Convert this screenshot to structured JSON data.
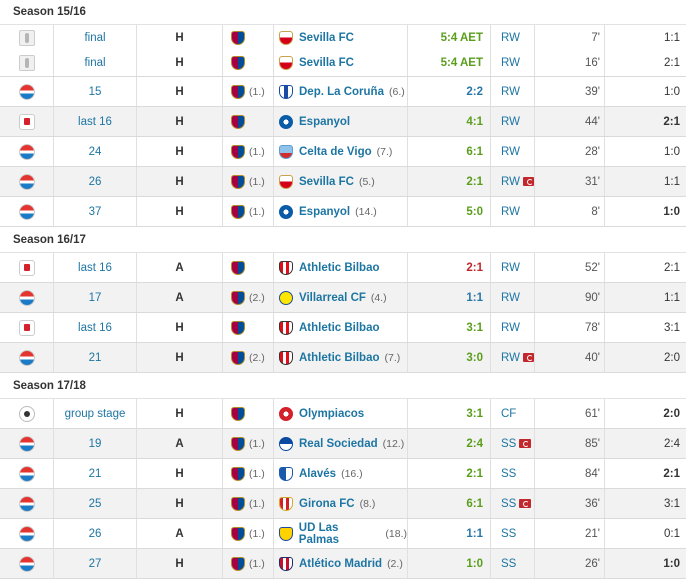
{
  "seasons": [
    {
      "label": "Season 15/16",
      "matches": [
        {
          "comp_icon": "supercopa-icon",
          "round": "final",
          "venue": "H",
          "team_rank": "",
          "opponent": "Sevilla FC",
          "opp_crest": "sevilla",
          "opp_rank": "",
          "result": "5:4 AET",
          "result_type": "win",
          "pos": "RW",
          "card": false,
          "minute": "7'",
          "score": "1:1",
          "score_bold": false
        },
        {
          "comp_icon": "supercopa-icon",
          "round": "final",
          "venue": "H",
          "team_rank": "",
          "opponent": "Sevilla FC",
          "opp_crest": "sevilla",
          "opp_rank": "",
          "result": "5:4 AET",
          "result_type": "win",
          "pos": "RW",
          "card": false,
          "minute": "16'",
          "score": "2:1",
          "score_bold": false
        },
        {
          "comp_icon": "laliga-icon",
          "round": "15",
          "venue": "H",
          "team_rank": "(1.)",
          "opponent": "Dep. La Coruña",
          "opp_crest": "depor",
          "opp_rank": "(6.)",
          "result": "2:2",
          "result_type": "draw",
          "pos": "RW",
          "card": false,
          "minute": "39'",
          "score": "1:0",
          "score_bold": false
        },
        {
          "comp_icon": "copa-icon",
          "round": "last 16",
          "venue": "H",
          "team_rank": "",
          "opponent": "Espanyol",
          "opp_crest": "espanyol",
          "opp_rank": "",
          "result": "4:1",
          "result_type": "win",
          "pos": "RW",
          "card": false,
          "minute": "44'",
          "score": "2:1",
          "score_bold": true
        },
        {
          "comp_icon": "laliga-icon",
          "round": "24",
          "venue": "H",
          "team_rank": "(1.)",
          "opponent": "Celta de Vigo",
          "opp_crest": "celta",
          "opp_rank": "(7.)",
          "result": "6:1",
          "result_type": "win",
          "pos": "RW",
          "card": false,
          "minute": "28'",
          "score": "1:0",
          "score_bold": false
        },
        {
          "comp_icon": "laliga-icon",
          "round": "26",
          "venue": "H",
          "team_rank": "(1.)",
          "opponent": "Sevilla FC",
          "opp_crest": "sevilla",
          "opp_rank": "(5.)",
          "result": "2:1",
          "result_type": "win",
          "pos": "RW",
          "card": true,
          "minute": "31'",
          "score": "1:1",
          "score_bold": false
        },
        {
          "comp_icon": "laliga-icon",
          "round": "37",
          "venue": "H",
          "team_rank": "(1.)",
          "opponent": "Espanyol",
          "opp_crest": "espanyol",
          "opp_rank": "(14.)",
          "result": "5:0",
          "result_type": "win",
          "pos": "RW",
          "card": false,
          "minute": "8'",
          "score": "1:0",
          "score_bold": true
        }
      ]
    },
    {
      "label": "Season 16/17",
      "matches": [
        {
          "comp_icon": "copa-icon",
          "round": "last 16",
          "venue": "A",
          "team_rank": "",
          "opponent": "Athletic Bilbao",
          "opp_crest": "bilbao",
          "opp_rank": "",
          "result": "2:1",
          "result_type": "loss",
          "pos": "RW",
          "card": false,
          "minute": "52'",
          "score": "2:1",
          "score_bold": false
        },
        {
          "comp_icon": "laliga-icon",
          "round": "17",
          "venue": "A",
          "team_rank": "(2.)",
          "opponent": "Villarreal CF",
          "opp_crest": "villarreal",
          "opp_rank": "(4.)",
          "result": "1:1",
          "result_type": "draw",
          "pos": "RW",
          "card": false,
          "minute": "90'",
          "score": "1:1",
          "score_bold": false
        },
        {
          "comp_icon": "copa-icon",
          "round": "last 16",
          "venue": "H",
          "team_rank": "",
          "opponent": "Athletic Bilbao",
          "opp_crest": "bilbao",
          "opp_rank": "",
          "result": "3:1",
          "result_type": "win",
          "pos": "RW",
          "card": false,
          "minute": "78'",
          "score": "3:1",
          "score_bold": false
        },
        {
          "comp_icon": "laliga-icon",
          "round": "21",
          "venue": "H",
          "team_rank": "(2.)",
          "opponent": "Athletic Bilbao",
          "opp_crest": "bilbao",
          "opp_rank": "(7.)",
          "result": "3:0",
          "result_type": "win",
          "pos": "RW",
          "card": true,
          "minute": "40'",
          "score": "2:0",
          "score_bold": false
        }
      ]
    },
    {
      "label": "Season 17/18",
      "matches": [
        {
          "comp_icon": "champions-league-icon",
          "round": "group stage",
          "venue": "H",
          "team_rank": "",
          "opponent": "Olympiacos",
          "opp_crest": "olympiacos",
          "opp_rank": "",
          "result": "3:1",
          "result_type": "win",
          "pos": "CF",
          "card": false,
          "minute": "61'",
          "score": "2:0",
          "score_bold": true
        },
        {
          "comp_icon": "laliga-icon",
          "round": "19",
          "venue": "A",
          "team_rank": "(1.)",
          "opponent": "Real Sociedad",
          "opp_crest": "realsoc",
          "opp_rank": "(12.)",
          "result": "2:4",
          "result_type": "win",
          "pos": "SS",
          "card": true,
          "minute": "85'",
          "score": "2:4",
          "score_bold": false
        },
        {
          "comp_icon": "laliga-icon",
          "round": "21",
          "venue": "H",
          "team_rank": "(1.)",
          "opponent": "Alavés",
          "opp_crest": "alaves",
          "opp_rank": "(16.)",
          "result": "2:1",
          "result_type": "win",
          "pos": "SS",
          "card": false,
          "minute": "84'",
          "score": "2:1",
          "score_bold": true
        },
        {
          "comp_icon": "laliga-icon",
          "round": "25",
          "venue": "H",
          "team_rank": "(1.)",
          "opponent": "Girona FC",
          "opp_crest": "girona",
          "opp_rank": "(8.)",
          "result": "6:1",
          "result_type": "win",
          "pos": "SS",
          "card": true,
          "minute": "36'",
          "score": "3:1",
          "score_bold": false
        },
        {
          "comp_icon": "laliga-icon",
          "round": "26",
          "venue": "A",
          "team_rank": "(1.)",
          "opponent": "UD Las Palmas",
          "opp_crest": "laspalmas",
          "opp_rank": "(18.)",
          "result": "1:1",
          "result_type": "draw",
          "pos": "SS",
          "card": false,
          "minute": "21'",
          "score": "0:1",
          "score_bold": false
        },
        {
          "comp_icon": "laliga-icon",
          "round": "27",
          "venue": "H",
          "team_rank": "(1.)",
          "opponent": "Atlético Madrid",
          "opp_crest": "atletico",
          "opp_rank": "(2.)",
          "result": "1:0",
          "result_type": "win",
          "pos": "SS",
          "card": false,
          "minute": "26'",
          "score": "1:0",
          "score_bold": true
        }
      ]
    }
  ],
  "colors": {
    "link_blue": "#1d75a3",
    "win_green": "#5a9e1c",
    "draw_blue": "#2a77a8",
    "loss_red": "#c1272d",
    "row_alt": "#f2f2f2",
    "card_red": "#c1272d"
  },
  "team_crest_icon": "barcelona-crest-icon"
}
